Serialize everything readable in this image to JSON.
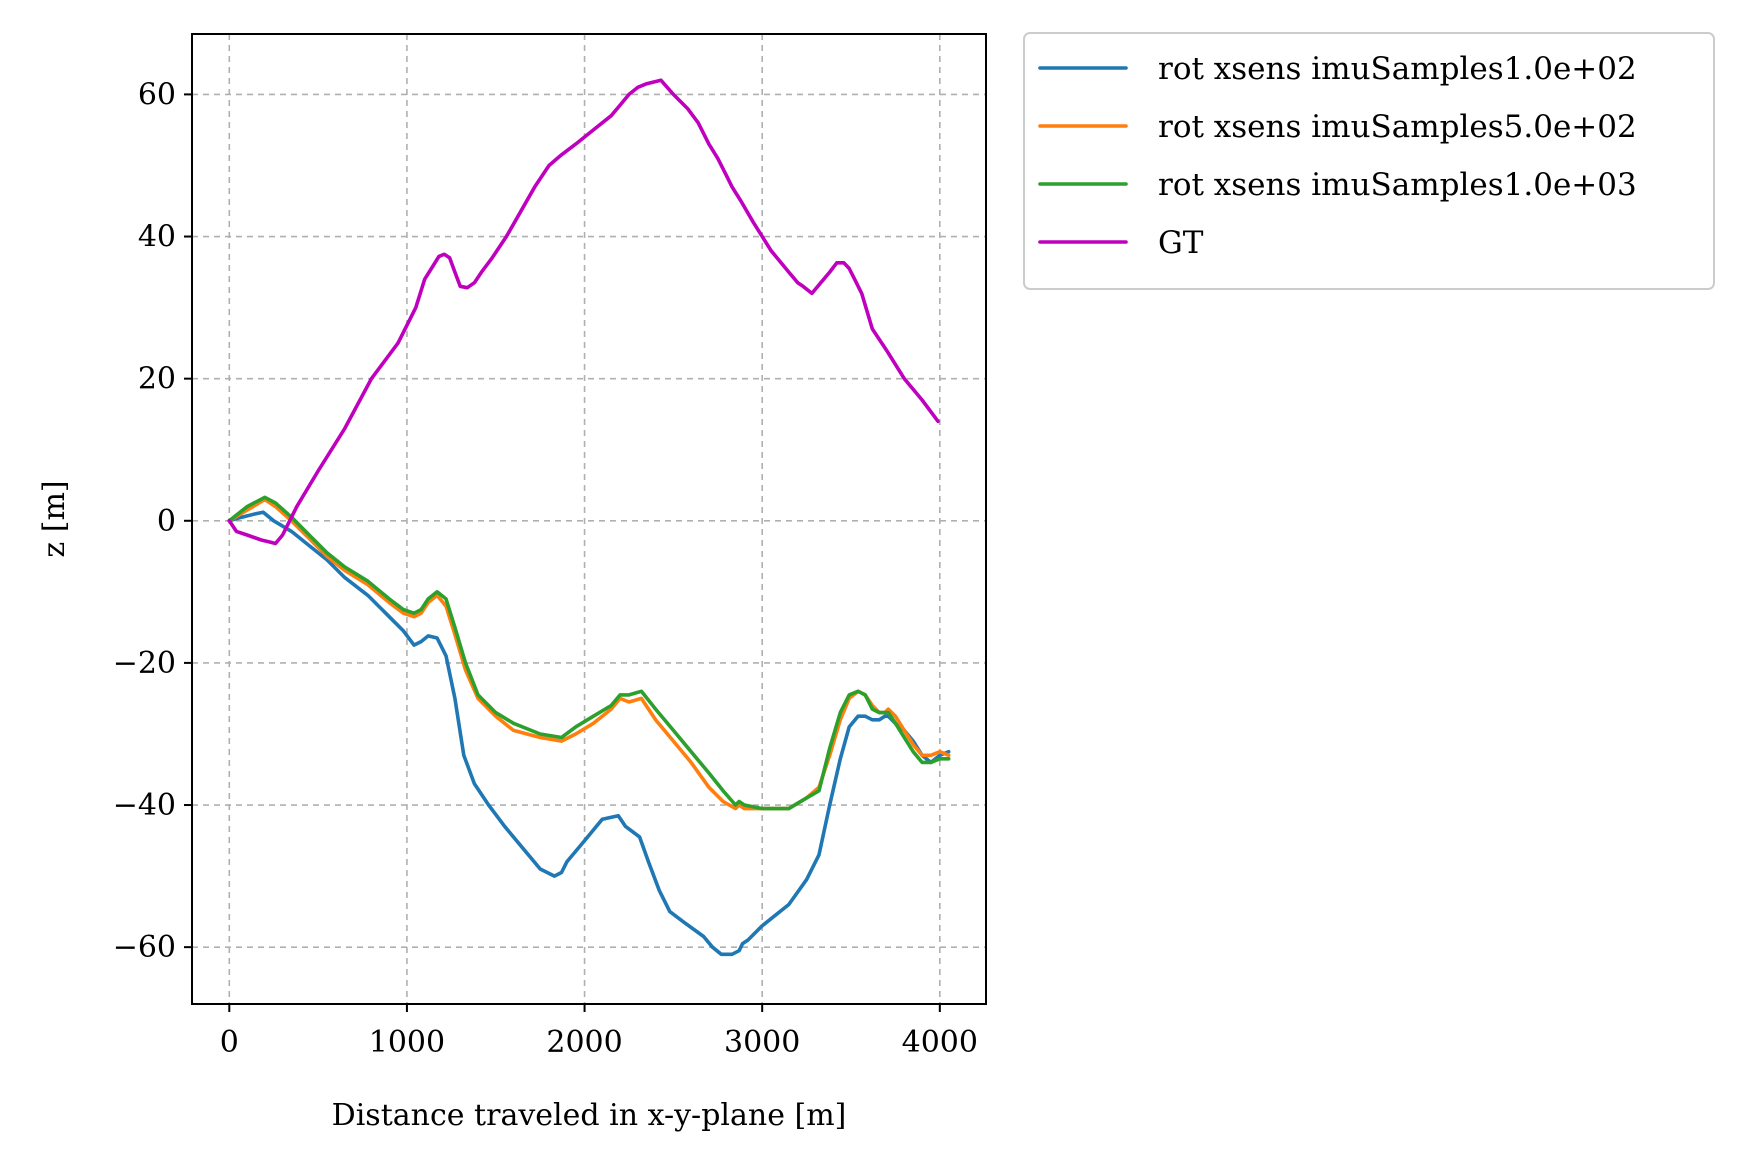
{
  "chart_data": {
    "type": "line",
    "title": "",
    "xlabel": "Distance traveled in x-y-plane [m]",
    "ylabel": "z [m]",
    "xlim": [
      -210,
      4260
    ],
    "ylim": [
      -68,
      68.5
    ],
    "xticks": [
      0,
      1000,
      2000,
      3000,
      4000
    ],
    "xtick_labels": [
      "0",
      "1000",
      "2000",
      "3000",
      "4000"
    ],
    "yticks": [
      -60,
      -40,
      -20,
      0,
      20,
      40,
      60
    ],
    "ytick_labels": [
      "−60",
      "−40",
      "−20",
      "0",
      "20",
      "40",
      "60"
    ],
    "grid": true,
    "legend_position": "outside-top-right",
    "series": [
      {
        "name": "rot xsens imuSamples1.0e+02",
        "color": "#1f77b4",
        "x": [
          0,
          70,
          150,
          190,
          250,
          350,
          450,
          550,
          650,
          780,
          900,
          980,
          1040,
          1080,
          1120,
          1170,
          1220,
          1270,
          1320,
          1380,
          1460,
          1550,
          1650,
          1750,
          1830,
          1870,
          1900,
          2000,
          2100,
          2190,
          2230,
          2310,
          2360,
          2420,
          2480,
          2560,
          2670,
          2720,
          2770,
          2830,
          2870,
          2890,
          2920,
          3000,
          3150,
          3250,
          3320,
          3380,
          3440,
          3490,
          3540,
          3580,
          3620,
          3660,
          3690,
          3710,
          3750,
          3800,
          3850,
          3900,
          3950,
          4000,
          4050
        ],
        "values": [
          0,
          0.5,
          1.0,
          1.2,
          0,
          -1.5,
          -3.5,
          -5.5,
          -8,
          -10.5,
          -13.5,
          -15.5,
          -17.5,
          -17,
          -16.2,
          -16.5,
          -19,
          -25,
          -33,
          -37,
          -40,
          -43,
          -46,
          -49,
          -50,
          -49.5,
          -48,
          -45,
          -42,
          -41.5,
          -43,
          -44.5,
          -48,
          -52,
          -55,
          -56.5,
          -58.5,
          -60,
          -61,
          -61,
          -60.5,
          -59.5,
          -59,
          -57,
          -54,
          -50.5,
          -47,
          -40,
          -33.5,
          -29,
          -27.5,
          -27.5,
          -28,
          -28,
          -27.5,
          -27.5,
          -28.5,
          -29.5,
          -31,
          -33,
          -34,
          -33,
          -32.5
        ]
      },
      {
        "name": "rot xsens imuSamples5.0e+02",
        "color": "#ff7f0e",
        "x": [
          0,
          100,
          200,
          260,
          350,
          450,
          550,
          650,
          780,
          900,
          980,
          1040,
          1080,
          1120,
          1170,
          1220,
          1270,
          1330,
          1400,
          1500,
          1600,
          1750,
          1870,
          1950,
          2050,
          2150,
          2200,
          2250,
          2320,
          2400,
          2500,
          2600,
          2700,
          2780,
          2850,
          2870,
          2900,
          3000,
          3150,
          3250,
          3320,
          3380,
          3440,
          3490,
          3540,
          3580,
          3620,
          3660,
          3690,
          3710,
          3750,
          3800,
          3850,
          3900,
          3950,
          4000,
          4050
        ],
        "values": [
          0,
          1.5,
          3.0,
          2.0,
          0,
          -2.5,
          -5,
          -7,
          -9,
          -11.5,
          -13,
          -13.5,
          -13,
          -11.5,
          -10.5,
          -12,
          -16,
          -21,
          -25,
          -27.5,
          -29.5,
          -30.5,
          -31,
          -30,
          -28.5,
          -26.5,
          -25,
          -25.5,
          -25,
          -28,
          -31,
          -34,
          -37.5,
          -39.5,
          -40.5,
          -40,
          -40.5,
          -40.5,
          -40.5,
          -39,
          -37.5,
          -33,
          -28,
          -25,
          -24,
          -24.5,
          -26,
          -27,
          -27,
          -26.5,
          -27.5,
          -29.5,
          -31.5,
          -33,
          -33,
          -32.5,
          -33
        ]
      },
      {
        "name": "rot xsens imuSamples1.0e+03",
        "color": "#2ca02c",
        "x": [
          0,
          100,
          200,
          260,
          350,
          450,
          550,
          650,
          780,
          900,
          980,
          1040,
          1080,
          1120,
          1170,
          1220,
          1270,
          1330,
          1400,
          1500,
          1600,
          1750,
          1870,
          1950,
          2050,
          2150,
          2200,
          2250,
          2320,
          2400,
          2500,
          2600,
          2700,
          2780,
          2850,
          2870,
          2900,
          3000,
          3150,
          3250,
          3320,
          3380,
          3440,
          3490,
          3540,
          3580,
          3620,
          3660,
          3690,
          3710,
          3750,
          3800,
          3850,
          3900,
          3950,
          4000,
          4050
        ],
        "values": [
          0,
          2,
          3.3,
          2.5,
          0.5,
          -2,
          -4.5,
          -6.5,
          -8.5,
          -11,
          -12.5,
          -13,
          -12.5,
          -11,
          -10,
          -11,
          -15,
          -20,
          -24.5,
          -27,
          -28.5,
          -30,
          -30.5,
          -29,
          -27.5,
          -26,
          -24.5,
          -24.5,
          -24,
          -26.5,
          -29.5,
          -32.5,
          -35.5,
          -38,
          -40,
          -39.5,
          -40,
          -40.5,
          -40.5,
          -39,
          -38,
          -32,
          -27,
          -24.5,
          -24,
          -24.5,
          -26.5,
          -27,
          -27,
          -27,
          -28.5,
          -30.5,
          -32.5,
          -34,
          -34,
          -33.5,
          -33.5
        ]
      },
      {
        "name": "GT",
        "color": "#bf00bf",
        "x": [
          0,
          40,
          100,
          180,
          230,
          260,
          300,
          380,
          500,
          650,
          800,
          950,
          1050,
          1100,
          1150,
          1180,
          1210,
          1240,
          1270,
          1300,
          1340,
          1380,
          1420,
          1480,
          1560,
          1640,
          1720,
          1800,
          1870,
          1950,
          2050,
          2150,
          2200,
          2250,
          2300,
          2350,
          2430,
          2500,
          2580,
          2640,
          2700,
          2750,
          2800,
          2830,
          2880,
          2950,
          3050,
          3150,
          3200,
          3230,
          3280,
          3330,
          3380,
          3420,
          3460,
          3490,
          3520,
          3560,
          3590,
          3620,
          3700,
          3800,
          3900,
          3990
        ],
        "values": [
          0,
          -1.5,
          -2,
          -2.7,
          -3.0,
          -3.2,
          -2,
          2,
          7,
          13,
          20,
          25,
          30,
          34,
          36,
          37.2,
          37.5,
          37,
          35,
          33,
          32.8,
          33.5,
          35,
          37,
          40,
          43.5,
          47,
          50,
          51.5,
          53,
          55,
          57,
          58.5,
          60,
          61,
          61.5,
          62,
          60,
          58,
          56,
          53,
          51,
          48.5,
          47,
          45,
          42,
          38,
          35,
          33.5,
          33,
          32,
          33.5,
          35,
          36.3,
          36.3,
          35.5,
          34,
          32,
          29.5,
          27,
          24,
          20,
          17,
          14
        ]
      }
    ]
  }
}
